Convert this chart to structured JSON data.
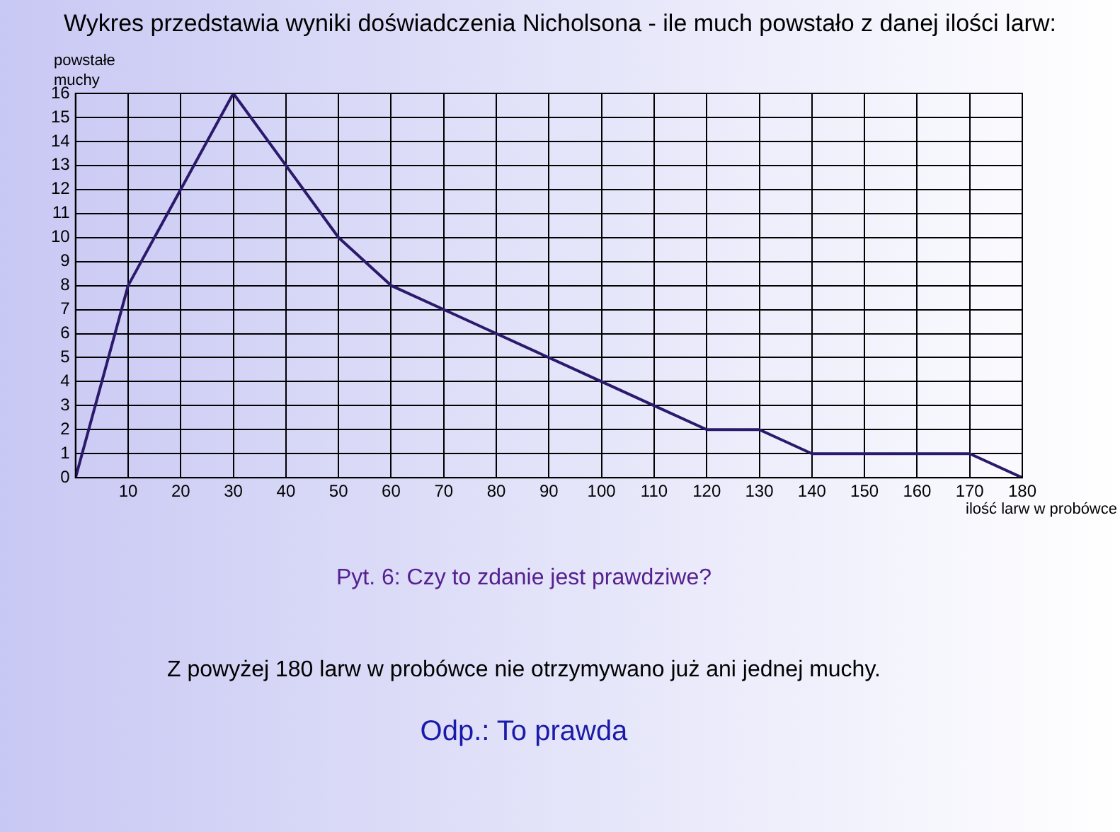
{
  "chart_data": {
    "type": "line",
    "title": "Wykres przedstawia wyniki doświadczenia Nicholsona - ile much powstało z danej ilości larw:",
    "xlabel": "ilość larw w probówce",
    "ylabel": "powstałe\nmuchy",
    "x": [
      0,
      10,
      20,
      30,
      40,
      50,
      60,
      70,
      80,
      90,
      100,
      110,
      120,
      130,
      140,
      150,
      160,
      170,
      180
    ],
    "series": [
      {
        "color": "#2b1a6b",
        "values": [
          0,
          8,
          12,
          16,
          13,
          10,
          8,
          7,
          6,
          5,
          4,
          3,
          2,
          2,
          1,
          1,
          1,
          1,
          0
        ]
      }
    ],
    "xlim": [
      0,
      180
    ],
    "xticks": [
      {
        "value": 0,
        "label": null
      },
      10,
      20,
      30,
      40,
      50,
      60,
      70,
      80,
      90,
      100,
      110,
      120,
      130,
      140,
      150,
      160,
      170,
      180
    ],
    "ylim": [
      0,
      16
    ],
    "yticks": [
      0,
      1,
      2,
      3,
      4,
      5,
      6,
      7,
      8,
      9,
      10,
      11,
      12,
      13,
      14,
      15,
      16
    ],
    "grid": true,
    "legend": false,
    "marker": "none",
    "line_style": "solid",
    "annotations": [
      "Pyt. 6: Czy to zdanie jest prawdziwe?",
      "Z powyżej 180 larw w probówce nie otrzymywano już ani jednej muchy.",
      "Odp.: To prawda"
    ]
  }
}
